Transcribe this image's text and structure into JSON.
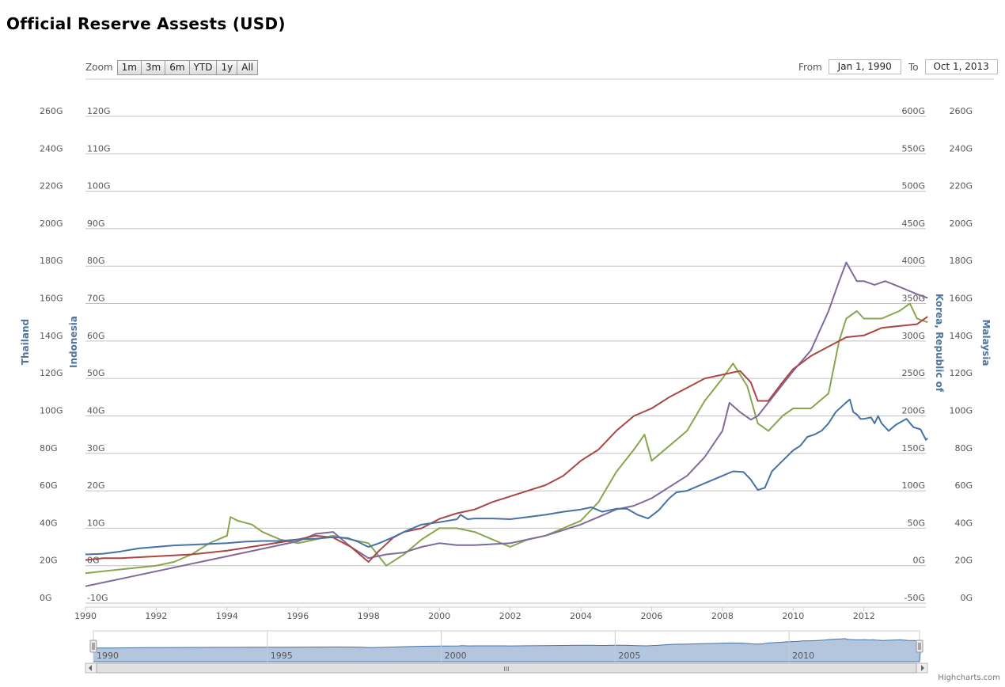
{
  "page": {
    "title": "Official Reserve Assests (USD)",
    "credit": "Highcharts.com"
  },
  "zoom": {
    "label": "Zoom",
    "buttons": [
      "1m",
      "3m",
      "6m",
      "YTD",
      "1y",
      "All"
    ]
  },
  "range": {
    "from_label": "From",
    "from_value": "Jan 1, 1990",
    "to_label": "To",
    "to_value": "Oct 1, 2013"
  },
  "colors": {
    "Korea": "#4572a7",
    "Thailand": "#aa4643",
    "Indonesia": "#89a54e",
    "Malaysia": "#80699b",
    "navigator": "#b4c6de"
  },
  "chart_data": {
    "type": "line",
    "title": "Official Reserve Assests (USD)",
    "x_tick_labels": [
      "1990",
      "1992",
      "1994",
      "1996",
      "1998",
      "2000",
      "2002",
      "2004",
      "2006",
      "2008",
      "2010",
      "2012"
    ],
    "xlim": [
      1990.0,
      2013.75
    ],
    "axes": {
      "Thailand": {
        "side": "left-outer",
        "ylim": [
          0,
          260
        ],
        "ticks": [
          0,
          20,
          40,
          60,
          80,
          100,
          120,
          140,
          160,
          180,
          200,
          220,
          240,
          260
        ],
        "tick_labels": [
          "0G",
          "20G",
          "40G",
          "60G",
          "80G",
          "100G",
          "120G",
          "140G",
          "160G",
          "180G",
          "200G",
          "220G",
          "240G",
          "260G"
        ]
      },
      "Indonesia": {
        "side": "left-inner",
        "ylim": [
          -10,
          120
        ],
        "ticks": [
          -10,
          0,
          10,
          20,
          30,
          40,
          50,
          60,
          70,
          80,
          90,
          100,
          110,
          120
        ],
        "tick_labels": [
          "-10G",
          "0G",
          "10G",
          "20G",
          "30G",
          "40G",
          "50G",
          "60G",
          "70G",
          "80G",
          "90G",
          "100G",
          "110G",
          "120G"
        ]
      },
      "Korea, Republic of": {
        "side": "right-inner",
        "ylim": [
          -50,
          600
        ],
        "ticks": [
          -50,
          0,
          50,
          100,
          150,
          200,
          250,
          300,
          350,
          400,
          450,
          500,
          550,
          600
        ],
        "tick_labels": [
          "-50G",
          "0G",
          "50G",
          "100G",
          "150G",
          "200G",
          "250G",
          "300G",
          "350G",
          "400G",
          "450G",
          "500G",
          "550G",
          "600G"
        ]
      },
      "Malaysia": {
        "side": "right-outer",
        "ylim": [
          0,
          260
        ],
        "ticks": [
          0,
          20,
          40,
          60,
          80,
          100,
          120,
          140,
          160,
          180,
          200,
          220,
          240,
          260
        ],
        "tick_labels": [
          "0G",
          "20G",
          "40G",
          "60G",
          "80G",
          "100G",
          "120G",
          "140G",
          "160G",
          "180G",
          "200G",
          "220G",
          "240G",
          "260G"
        ]
      }
    },
    "series": [
      {
        "name": "Korea, Republic of",
        "axis": "Korea, Republic of",
        "color_key": "Korea",
        "points": [
          [
            1990.0,
            15
          ],
          [
            1990.5,
            16
          ],
          [
            1991.0,
            19
          ],
          [
            1991.5,
            23
          ],
          [
            1992.0,
            25
          ],
          [
            1992.5,
            27
          ],
          [
            1993.0,
            28
          ],
          [
            1993.5,
            29
          ],
          [
            1994.0,
            30
          ],
          [
            1994.5,
            32
          ],
          [
            1995.0,
            33
          ],
          [
            1995.5,
            33
          ],
          [
            1996.0,
            35
          ],
          [
            1996.5,
            36
          ],
          [
            1997.0,
            38
          ],
          [
            1997.4,
            37
          ],
          [
            1997.7,
            32
          ],
          [
            1997.9,
            27
          ],
          [
            1998.0,
            25
          ],
          [
            1998.3,
            30
          ],
          [
            1998.7,
            38
          ],
          [
            1999.0,
            45
          ],
          [
            1999.5,
            55
          ],
          [
            2000.0,
            58
          ],
          [
            2000.5,
            62
          ],
          [
            2000.6,
            68
          ],
          [
            2000.8,
            62
          ],
          [
            2001.0,
            63
          ],
          [
            2001.5,
            63
          ],
          [
            2002.0,
            62
          ],
          [
            2002.5,
            65
          ],
          [
            2003.0,
            68
          ],
          [
            2003.5,
            72
          ],
          [
            2004.0,
            75
          ],
          [
            2004.3,
            78
          ],
          [
            2004.6,
            72
          ],
          [
            2005.0,
            76
          ],
          [
            2005.3,
            76
          ],
          [
            2005.6,
            68
          ],
          [
            2005.9,
            63
          ],
          [
            2006.2,
            74
          ],
          [
            2006.5,
            90
          ],
          [
            2006.7,
            98
          ],
          [
            2007.0,
            100
          ],
          [
            2007.5,
            110
          ],
          [
            2008.0,
            120
          ],
          [
            2008.3,
            126
          ],
          [
            2008.6,
            125
          ],
          [
            2008.8,
            115
          ],
          [
            2009.0,
            101
          ],
          [
            2009.2,
            104
          ],
          [
            2009.4,
            126
          ],
          [
            2009.7,
            140
          ],
          [
            2010.0,
            154
          ],
          [
            2010.2,
            160
          ],
          [
            2010.4,
            172
          ],
          [
            2010.6,
            175
          ],
          [
            2010.8,
            180
          ],
          [
            2011.0,
            190
          ],
          [
            2011.2,
            205
          ],
          [
            2011.5,
            218
          ],
          [
            2011.6,
            222
          ],
          [
            2011.7,
            205
          ],
          [
            2011.8,
            202
          ],
          [
            2011.9,
            196
          ],
          [
            2012.0,
            196
          ],
          [
            2012.2,
            198
          ],
          [
            2012.3,
            190
          ],
          [
            2012.4,
            200
          ],
          [
            2012.5,
            190
          ],
          [
            2012.7,
            180
          ],
          [
            2012.9,
            188
          ],
          [
            2013.2,
            196
          ],
          [
            2013.4,
            185
          ],
          [
            2013.6,
            182
          ],
          [
            2013.75,
            168
          ],
          [
            2013.8,
            170
          ]
        ]
      },
      {
        "name": "Thailand",
        "axis": "Thailand",
        "color_key": "Thailand",
        "points": [
          [
            1990.0,
            23
          ],
          [
            1990.5,
            24
          ],
          [
            1991.0,
            24
          ],
          [
            1992.0,
            25
          ],
          [
            1993.0,
            26
          ],
          [
            1994.0,
            28
          ],
          [
            1995.0,
            31
          ],
          [
            1996.0,
            34
          ],
          [
            1996.5,
            36
          ],
          [
            1997.0,
            35
          ],
          [
            1997.5,
            30
          ],
          [
            1998.0,
            22
          ],
          [
            1998.3,
            28
          ],
          [
            1998.7,
            35
          ],
          [
            1999.0,
            38
          ],
          [
            1999.5,
            40
          ],
          [
            2000.0,
            45
          ],
          [
            2000.5,
            48
          ],
          [
            2001.0,
            50
          ],
          [
            2001.5,
            54
          ],
          [
            2002.0,
            57
          ],
          [
            2002.5,
            60
          ],
          [
            2003.0,
            63
          ],
          [
            2003.5,
            68
          ],
          [
            2004.0,
            76
          ],
          [
            2004.5,
            82
          ],
          [
            2005.0,
            92
          ],
          [
            2005.5,
            100
          ],
          [
            2006.0,
            104
          ],
          [
            2006.5,
            110
          ],
          [
            2007.0,
            115
          ],
          [
            2007.5,
            120
          ],
          [
            2008.0,
            122
          ],
          [
            2008.5,
            124
          ],
          [
            2008.8,
            118
          ],
          [
            2009.0,
            108
          ],
          [
            2009.3,
            108
          ],
          [
            2009.7,
            118
          ],
          [
            2010.0,
            125
          ],
          [
            2010.5,
            132
          ],
          [
            2011.0,
            137
          ],
          [
            2011.5,
            142
          ],
          [
            2012.0,
            143
          ],
          [
            2012.5,
            147
          ],
          [
            2013.0,
            148
          ],
          [
            2013.5,
            149
          ],
          [
            2013.8,
            153
          ]
        ]
      },
      {
        "name": "Indonesia",
        "axis": "Indonesia",
        "color_key": "Indonesia",
        "points": [
          [
            1990.0,
            -2
          ],
          [
            1991.0,
            -1
          ],
          [
            1992.0,
            0
          ],
          [
            1992.5,
            1
          ],
          [
            1993.0,
            3
          ],
          [
            1993.5,
            6
          ],
          [
            1994.0,
            8
          ],
          [
            1994.1,
            13
          ],
          [
            1994.3,
            12
          ],
          [
            1994.7,
            11
          ],
          [
            1995.0,
            9
          ],
          [
            1995.5,
            7
          ],
          [
            1996.0,
            6
          ],
          [
            1996.5,
            7
          ],
          [
            1997.0,
            8
          ],
          [
            1997.5,
            7
          ],
          [
            1998.0,
            6
          ],
          [
            1998.5,
            0
          ],
          [
            1999.0,
            3
          ],
          [
            1999.5,
            7
          ],
          [
            2000.0,
            10
          ],
          [
            2000.5,
            10
          ],
          [
            2001.0,
            9
          ],
          [
            2001.5,
            7
          ],
          [
            2002.0,
            5
          ],
          [
            2002.5,
            7
          ],
          [
            2003.0,
            8
          ],
          [
            2003.5,
            10
          ],
          [
            2004.0,
            12
          ],
          [
            2004.5,
            17
          ],
          [
            2005.0,
            25
          ],
          [
            2005.5,
            31
          ],
          [
            2005.8,
            35
          ],
          [
            2006.0,
            28
          ],
          [
            2006.5,
            32
          ],
          [
            2007.0,
            36
          ],
          [
            2007.5,
            44
          ],
          [
            2008.0,
            50
          ],
          [
            2008.3,
            54
          ],
          [
            2008.7,
            48
          ],
          [
            2009.0,
            38
          ],
          [
            2009.3,
            36
          ],
          [
            2009.7,
            40
          ],
          [
            2010.0,
            42
          ],
          [
            2010.5,
            42
          ],
          [
            2011.0,
            46
          ],
          [
            2011.3,
            60
          ],
          [
            2011.5,
            66
          ],
          [
            2011.8,
            68
          ],
          [
            2012.0,
            66
          ],
          [
            2012.5,
            66
          ],
          [
            2013.0,
            68
          ],
          [
            2013.3,
            70
          ],
          [
            2013.5,
            66
          ],
          [
            2013.8,
            65
          ]
        ]
      },
      {
        "name": "Malaysia",
        "axis": "Malaysia",
        "color_key": "Malaysia",
        "points": [
          [
            1990.0,
            9
          ],
          [
            1991.0,
            13
          ],
          [
            1992.0,
            17
          ],
          [
            1993.0,
            21
          ],
          [
            1994.0,
            25
          ],
          [
            1995.0,
            29
          ],
          [
            1996.0,
            33
          ],
          [
            1996.5,
            37
          ],
          [
            1997.0,
            38
          ],
          [
            1997.5,
            30
          ],
          [
            1998.0,
            24
          ],
          [
            1998.5,
            26
          ],
          [
            1999.0,
            27
          ],
          [
            1999.5,
            30
          ],
          [
            2000.0,
            32
          ],
          [
            2000.5,
            31
          ],
          [
            2001.0,
            31
          ],
          [
            2002.0,
            32
          ],
          [
            2002.5,
            34
          ],
          [
            2003.0,
            36
          ],
          [
            2003.5,
            39
          ],
          [
            2004.0,
            42
          ],
          [
            2004.5,
            46
          ],
          [
            2005.0,
            50
          ],
          [
            2005.5,
            52
          ],
          [
            2006.0,
            56
          ],
          [
            2006.5,
            62
          ],
          [
            2007.0,
            68
          ],
          [
            2007.5,
            78
          ],
          [
            2008.0,
            92
          ],
          [
            2008.2,
            107
          ],
          [
            2008.5,
            102
          ],
          [
            2008.8,
            98
          ],
          [
            2009.0,
            100
          ],
          [
            2009.5,
            112
          ],
          [
            2010.0,
            124
          ],
          [
            2010.5,
            135
          ],
          [
            2011.0,
            156
          ],
          [
            2011.3,
            172
          ],
          [
            2011.5,
            182
          ],
          [
            2011.8,
            172
          ],
          [
            2012.0,
            172
          ],
          [
            2012.3,
            170
          ],
          [
            2012.6,
            172
          ],
          [
            2013.0,
            169
          ],
          [
            2013.5,
            165
          ],
          [
            2013.8,
            163
          ]
        ]
      }
    ],
    "navigator": {
      "tick_labels": [
        "1990",
        "1995",
        "2000",
        "2005",
        "2010"
      ],
      "ticks": [
        1990,
        1995,
        2000,
        2005,
        2010
      ],
      "grip_label": "III"
    },
    "legend": "none",
    "y_axis_titles": [
      "Thailand",
      "Indonesia",
      "Korea, Republic of",
      "Malaysia"
    ]
  }
}
